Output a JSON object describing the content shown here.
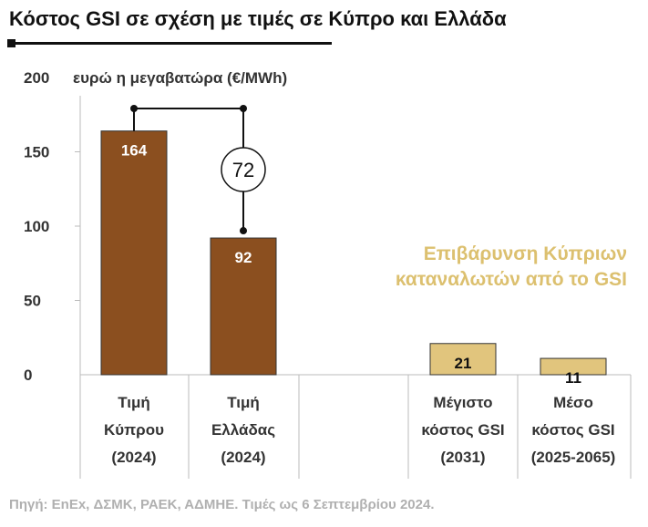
{
  "title": "Κόστος GSI σε σχέση με τιμές σε Κύπρο και Ελλάδα",
  "source": "Πηγή: EnEx, ΔΣΜΚ, ΡΑΕΚ, ΑΔΜΗΕ. Τιμές ως 6 Σεπτεμβρίου 2024.",
  "colors": {
    "brown": "#8b4f1f",
    "tan": "#e1c57d",
    "annotation": "#dcc06f",
    "axis": "#bbbbbb",
    "text": "#333333"
  },
  "chart_data": {
    "type": "bar",
    "ylabel": "ευρώ η μεγαβατώρα (€/MWh)",
    "ylim": [
      0,
      200
    ],
    "yticks": [
      0,
      50,
      100,
      150,
      200
    ],
    "grid": false,
    "categories": [
      [
        "Τιμή",
        "Κύπρου",
        "(2024)"
      ],
      [
        "Τιμή",
        "Ελλάδας",
        "(2024)"
      ],
      [
        "Μέγιστο",
        "κόστος GSI",
        "(2031)"
      ],
      [
        "Μέσο",
        "κόστος GSI",
        "(2025-2065)"
      ]
    ],
    "values": [
      164,
      92,
      21,
      11
    ],
    "bar_colors": [
      "brown",
      "brown",
      "tan",
      "tan"
    ],
    "difference": {
      "between": [
        0,
        1
      ],
      "value": 72
    },
    "annotation": [
      "Επιβάρυνση Κύπριων",
      "καταναλωτών από το GSI"
    ]
  }
}
